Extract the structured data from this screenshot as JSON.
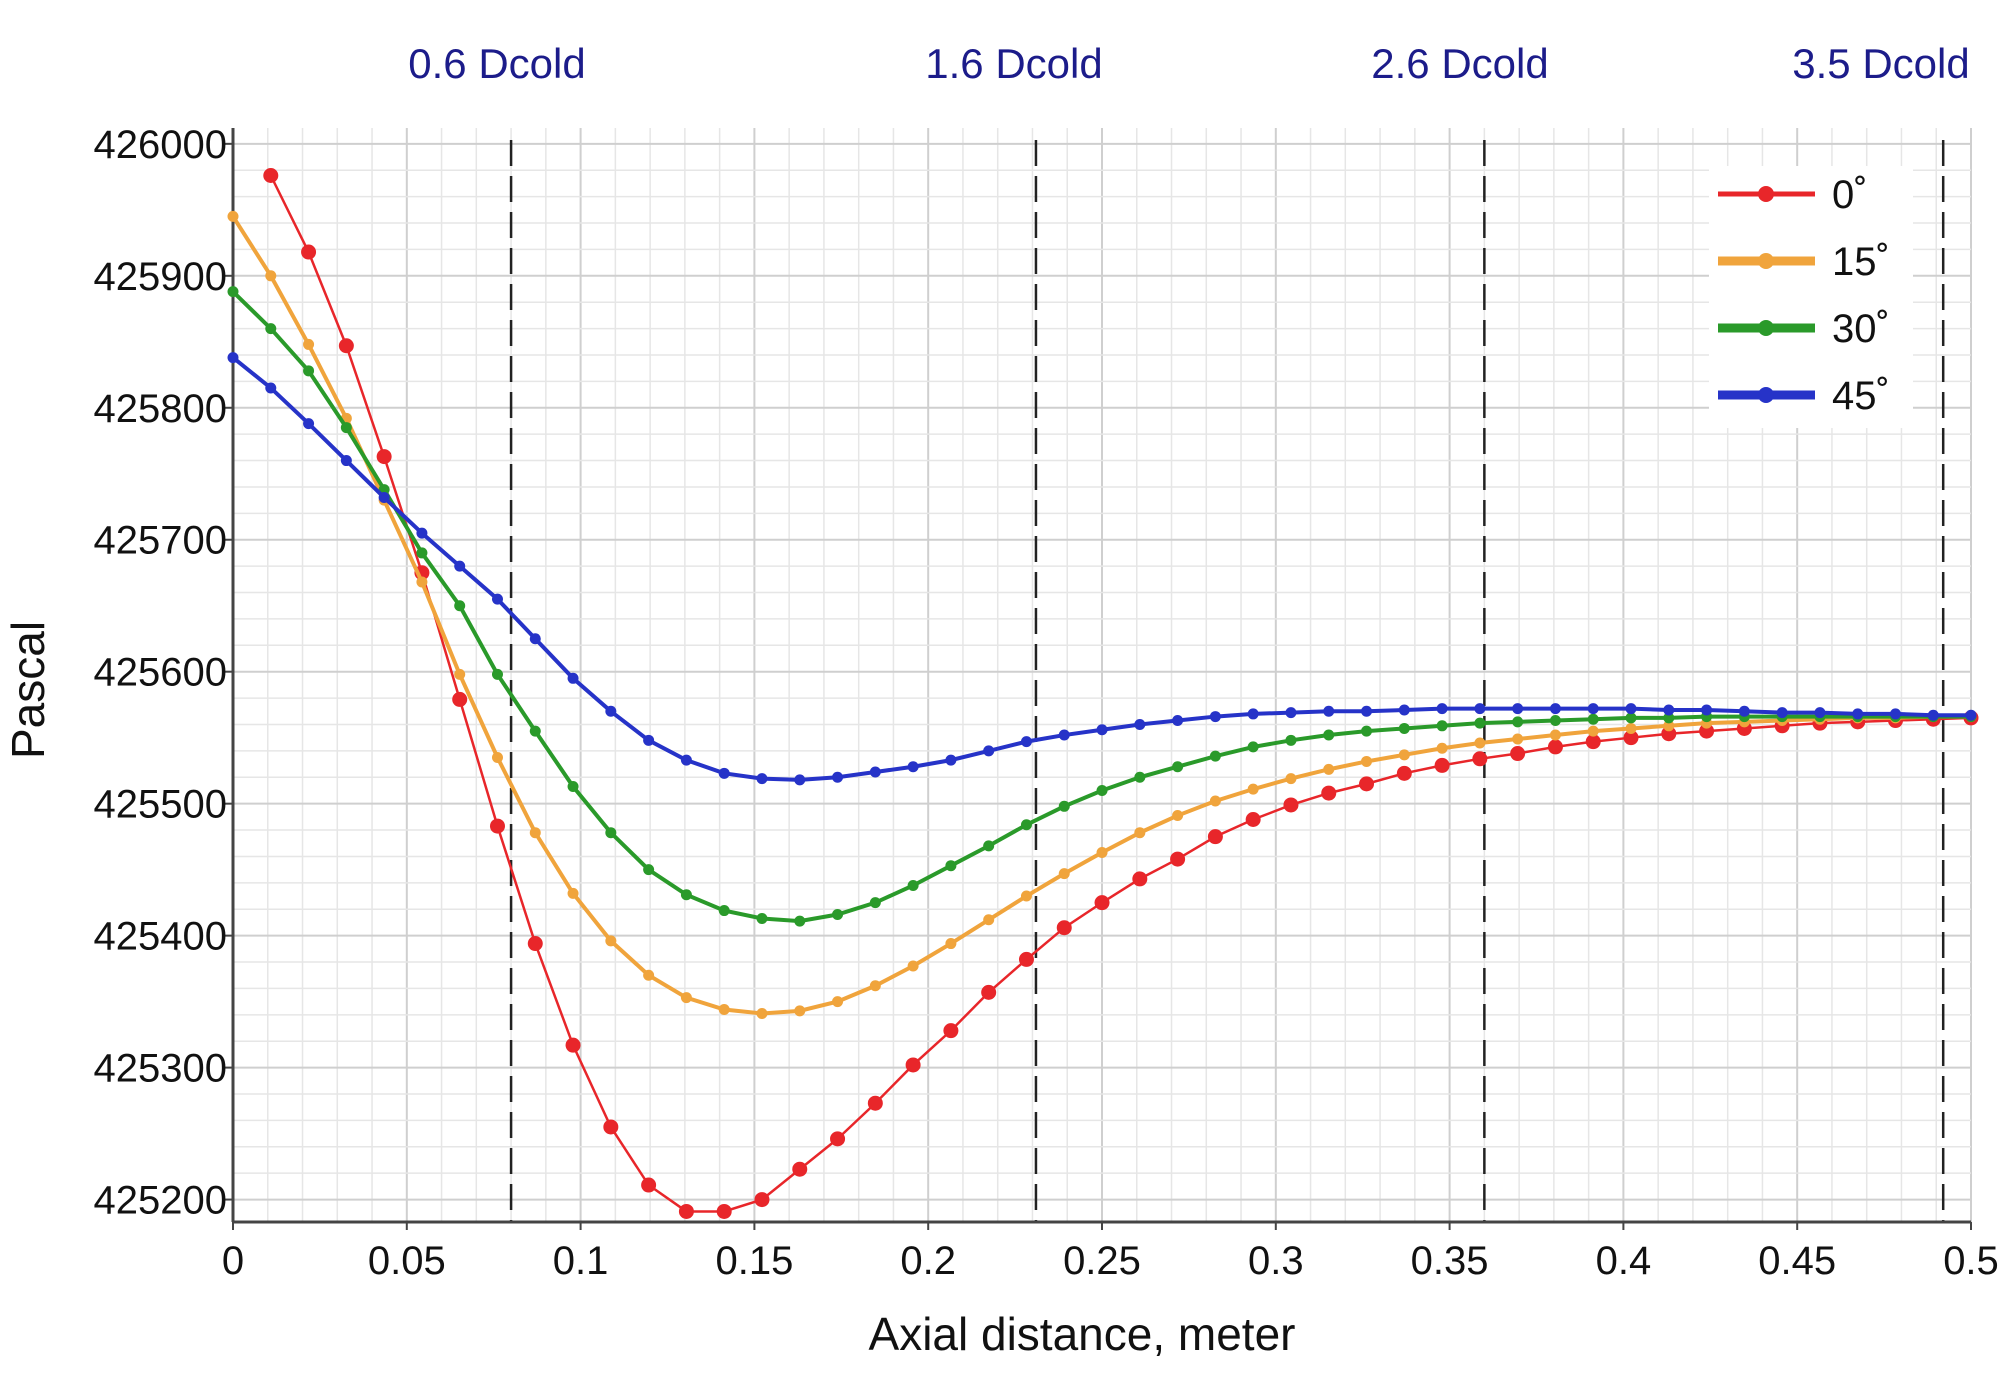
{
  "chart_data": {
    "type": "line",
    "title": "",
    "xlabel": "Axial distance, meter",
    "ylabel": "Pascal",
    "xlim": [
      0,
      0.5
    ],
    "ylim": [
      425183,
      426012
    ],
    "grid": true,
    "legend_placement": "top-right",
    "x_ticks": [
      "0",
      "0.05",
      "0.1",
      "0.15",
      "0.2",
      "0.25",
      "0.3",
      "0.35",
      "0.4",
      "0.45",
      "0.5"
    ],
    "y_ticks": [
      "426000",
      "425900",
      "425800",
      "425700",
      "425600",
      "425500",
      "425400",
      "425300",
      "425200"
    ],
    "annotations": [
      {
        "label": "0.6 Dcold",
        "x": 0.08
      },
      {
        "label": "1.6 Dcold",
        "x": 0.231
      },
      {
        "label": "2.6 Dcold",
        "x": 0.36
      },
      {
        "label": "3.5 Dcold",
        "x": 0.492
      }
    ],
    "x_step": 0.01087,
    "series": [
      {
        "name": "0˚",
        "color": "#e8262a",
        "values": [
          null,
          425976,
          425918,
          425847,
          425763,
          425675,
          425579,
          425483,
          425394,
          425317,
          425255,
          425211,
          425191,
          425191,
          425200,
          425223,
          425246,
          425273,
          425302,
          425328,
          425357,
          425382,
          425406,
          425425,
          425443,
          425458,
          425475,
          425488,
          425499,
          425508,
          425515,
          425523,
          425529,
          425534,
          425538,
          425543,
          425547,
          425550,
          425553,
          425555,
          425557,
          425559,
          425561,
          425562,
          425563,
          425564,
          425565
        ]
      },
      {
        "name": "15˚",
        "color": "#f0a43c",
        "values": [
          425945,
          425900,
          425848,
          425792,
          425730,
          425668,
          425598,
          425535,
          425478,
          425432,
          425396,
          425370,
          425353,
          425344,
          425341,
          425343,
          425350,
          425362,
          425377,
          425394,
          425412,
          425430,
          425447,
          425463,
          425478,
          425491,
          425502,
          425511,
          425519,
          425526,
          425532,
          425537,
          425542,
          425546,
          425549,
          425552,
          425555,
          425557,
          425559,
          425561,
          425562,
          425563,
          425564,
          425565,
          425565,
          425566,
          425566
        ]
      },
      {
        "name": "30˚",
        "color": "#2a9a2a",
        "values": [
          425888,
          425860,
          425828,
          425785,
          425738,
          425690,
          425650,
          425598,
          425555,
          425513,
          425478,
          425450,
          425431,
          425419,
          425413,
          425411,
          425416,
          425425,
          425438,
          425453,
          425468,
          425484,
          425498,
          425510,
          425520,
          425528,
          425536,
          425543,
          425548,
          425552,
          425555,
          425557,
          425559,
          425561,
          425562,
          425563,
          425564,
          425565,
          425565,
          425566,
          425566,
          425566,
          425566,
          425566,
          425566,
          425566,
          425566
        ]
      },
      {
        "name": "45˚",
        "color": "#2633c8",
        "values": [
          425838,
          425815,
          425788,
          425760,
          425732,
          425705,
          425680,
          425655,
          425625,
          425595,
          425570,
          425548,
          425533,
          425523,
          425519,
          425518,
          425520,
          425524,
          425528,
          425533,
          425540,
          425547,
          425552,
          425556,
          425560,
          425563,
          425566,
          425568,
          425569,
          425570,
          425570,
          425571,
          425572,
          425572,
          425572,
          425572,
          425572,
          425572,
          425571,
          425571,
          425570,
          425569,
          425569,
          425568,
          425568,
          425567,
          425567
        ]
      }
    ]
  }
}
